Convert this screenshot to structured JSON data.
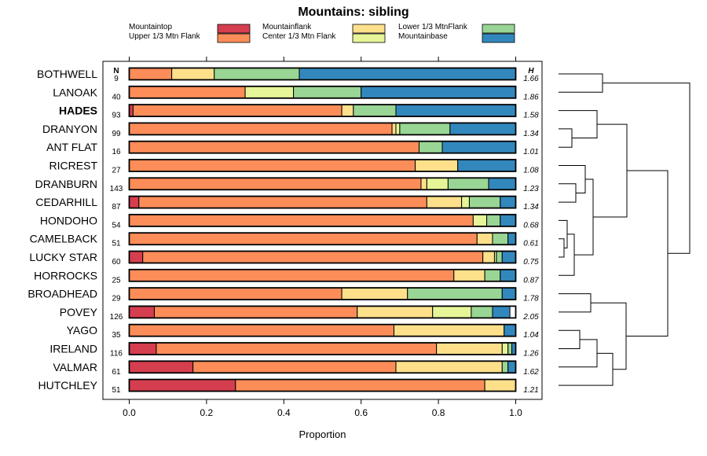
{
  "colors": {
    "Mountaintop": "#d53e4f",
    "Upper 1/3 Mtn Flank": "#fc8d59",
    "Mountainflank": "#fee08b",
    "Center 1/3 Mtn Flank": "#e6f598",
    "Lower 1/3 MtnFlank": "#99d594",
    "Mountainbase": "#3288bd"
  },
  "chart_data": {
    "type": "bar",
    "orientation": "horizontal",
    "stacked": true,
    "title": "Mountains: sibling",
    "xlabel": "Proportion",
    "xlim": [
      0,
      1
    ],
    "xticks": [
      0.0,
      0.2,
      0.4,
      0.6,
      0.8,
      1.0
    ],
    "xtick_labels": [
      "0.0",
      "0.2",
      "0.4",
      "0.6",
      "0.8",
      "1.0"
    ],
    "n_header": "N",
    "h_header": "H",
    "highlight": "HADES",
    "legend": [
      "Mountaintop",
      "Upper 1/3 Mtn Flank",
      "Mountainflank",
      "Center 1/3 Mtn Flank",
      "Lower 1/3 MtnFlank",
      "Mountainbase"
    ],
    "series_order": [
      "Mountaintop",
      "Upper 1/3 Mtn Flank",
      "Mountainflank",
      "Center 1/3 Mtn Flank",
      "Lower 1/3 MtnFlank",
      "Mountainbase"
    ],
    "rows": [
      {
        "name": "BOTHWELL",
        "n": "9",
        "h": "1.66",
        "values": [
          0,
          0.11,
          0.11,
          0,
          0.22,
          0.56
        ]
      },
      {
        "name": "LANOAK",
        "n": "40",
        "h": "1.86",
        "values": [
          0,
          0.3,
          0,
          0.125,
          0.175,
          0.4
        ]
      },
      {
        "name": "HADES",
        "n": "93",
        "h": "1.58",
        "values": [
          0.01,
          0.54,
          0.03,
          0,
          0.11,
          0.31
        ]
      },
      {
        "name": "DRANYON",
        "n": "99",
        "h": "1.34",
        "values": [
          0,
          0.68,
          0.01,
          0.01,
          0.13,
          0.17
        ]
      },
      {
        "name": "ANT FLAT",
        "n": "16",
        "h": "1.01",
        "values": [
          0,
          0.75,
          0,
          0,
          0.06,
          0.19
        ]
      },
      {
        "name": "RICREST",
        "n": "27",
        "h": "1.08",
        "values": [
          0,
          0.74,
          0.11,
          0,
          0,
          0.15
        ]
      },
      {
        "name": "DRANBURN",
        "n": "143",
        "h": "1.23",
        "values": [
          0,
          0.755,
          0.015,
          0.055,
          0.105,
          0.07
        ]
      },
      {
        "name": "CEDARHILL",
        "n": "87",
        "h": "1.34",
        "values": [
          0.025,
          0.745,
          0.09,
          0.02,
          0.08,
          0.04
        ]
      },
      {
        "name": "HONDOHO",
        "n": "54",
        "h": "0.68",
        "values": [
          0,
          0.89,
          0,
          0.035,
          0.035,
          0.04
        ]
      },
      {
        "name": "CAMELBACK",
        "n": "51",
        "h": "0.61",
        "values": [
          0,
          0.9,
          0.04,
          0,
          0.04,
          0.02
        ]
      },
      {
        "name": "LUCKY STAR",
        "n": "60",
        "h": "0.75",
        "values": [
          0.035,
          0.88,
          0.03,
          0.005,
          0.015,
          0.035
        ]
      },
      {
        "name": "HORROCKS",
        "n": "25",
        "h": "0.87",
        "values": [
          0,
          0.84,
          0.08,
          0,
          0.04,
          0.04
        ]
      },
      {
        "name": "BROADHEAD",
        "n": "29",
        "h": "1.78",
        "values": [
          0,
          0.55,
          0.17,
          0,
          0.245,
          0.035
        ]
      },
      {
        "name": "POVEY",
        "n": "126",
        "h": "2.05",
        "values": [
          0.065,
          0.525,
          0.195,
          0.1,
          0.055,
          0.045
        ]
      },
      {
        "name": "YAGO",
        "n": "35",
        "h": "1.04",
        "values": [
          0,
          0.685,
          0.285,
          0,
          0,
          0.03
        ]
      },
      {
        "name": "IRELAND",
        "n": "116",
        "h": "1.26",
        "values": [
          0.07,
          0.725,
          0.17,
          0.015,
          0.01,
          0.01
        ]
      },
      {
        "name": "VALMAR",
        "n": "61",
        "h": "1.62",
        "values": [
          0.165,
          0.525,
          0.275,
          0,
          0.015,
          0.02
        ]
      },
      {
        "name": "HUTCHLEY",
        "n": "51",
        "h": "1.21",
        "values": [
          0.275,
          0.645,
          0.08,
          0,
          0,
          0
        ]
      }
    ],
    "dendrogram": {
      "linkage": "hierarchical clustering of rows (right margin)",
      "leaves": [
        "BOTHWELL",
        "LANOAK",
        "HADES",
        "DRANYON",
        "ANT FLAT",
        "RICREST",
        "DRANBURN",
        "CEDARHILL",
        "HONDOHO",
        "CAMELBACK",
        "LUCKY STAR",
        "HORROCKS",
        "BROADHEAD",
        "POVEY",
        "YAGO",
        "IRELAND",
        "VALMAR",
        "HUTCHLEY"
      ]
    }
  }
}
